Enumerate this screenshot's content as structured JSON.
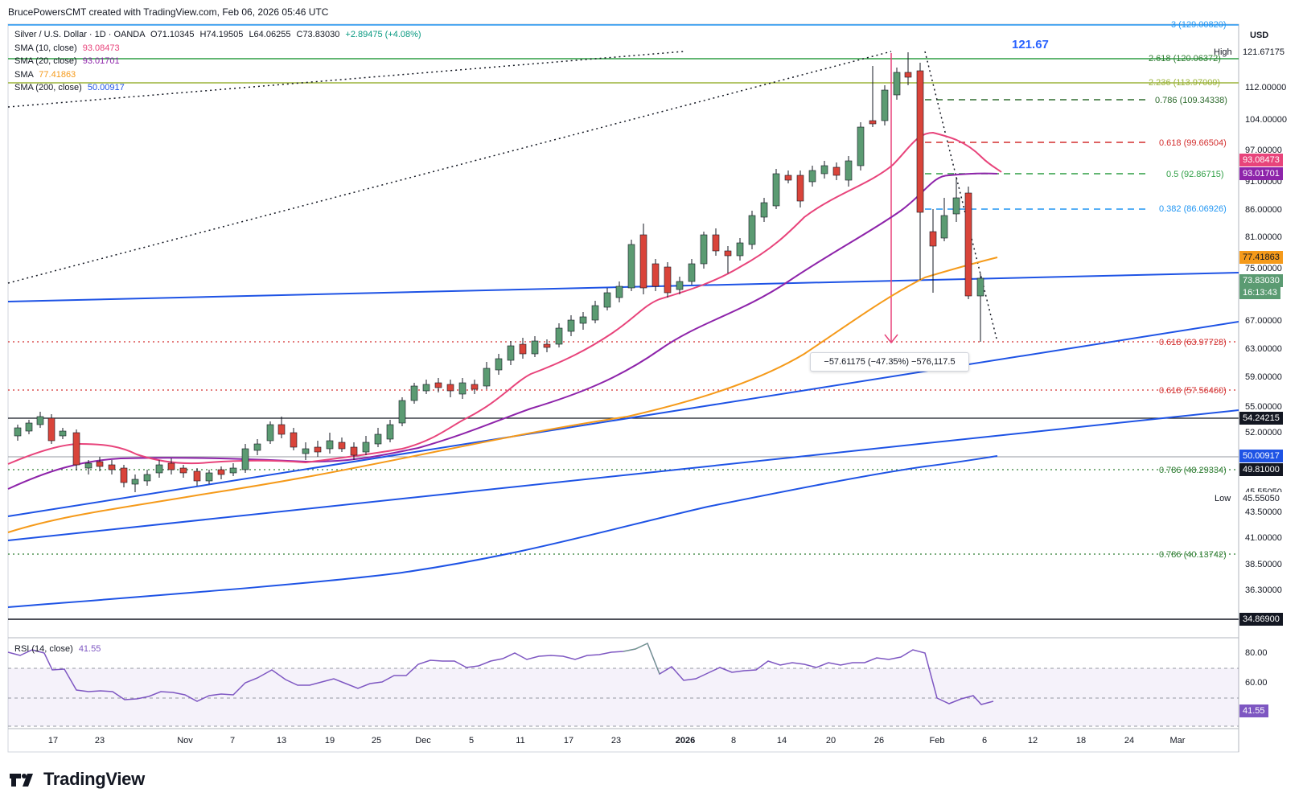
{
  "header": {
    "text": "BrucePowersCMT created with TradingView.com, Feb 06, 2026 05:46 UTC"
  },
  "symbol": {
    "title": "Silver / U.S. Dollar · 1D · OANDA",
    "open": "O71.10345",
    "high": "H74.19505",
    "low": "L64.06255",
    "close": "C73.83030",
    "change": "+2.89475 (+4.08%)"
  },
  "indicators": [
    {
      "label": "SMA (10, close)",
      "value": "93.08473",
      "color": "#e8447b"
    },
    {
      "label": "SMA (20, close)",
      "value": "93.01701",
      "color": "#8e24aa"
    },
    {
      "label": "SMA",
      "value": "77.41863",
      "color": "#f59a1a"
    },
    {
      "label": "SMA (200, close)",
      "value": "50.00917",
      "color": "#1e53e5"
    }
  ],
  "rsi": {
    "label": "RSI (14, close)",
    "value": "41.55",
    "color": "#7e57c2"
  },
  "currency": "USD",
  "high_label": "121.67",
  "measure": "−57.61175 (−47.35%) −576,117.5",
  "brand": "TradingView",
  "price_axis": [
    "121.67175",
    "112.00000",
    "104.00000",
    "97.00000",
    "91.00000",
    "86.00000",
    "81.00000",
    "75.00000",
    "67.00000",
    "63.00000",
    "59.00000",
    "55.00000",
    "52.00000",
    "45.55050",
    "43.50000",
    "41.00000",
    "38.50000",
    "36.30000",
    "34.40000"
  ],
  "price_tags": {
    "high_word": "High",
    "high_value": "121.67175",
    "sma10": "93.08473",
    "sma20": "93.01701",
    "sma_orange": "77.41863",
    "last_price": "73.83030",
    "countdown": "16:13:43",
    "level_54": "54.24215",
    "sma200": "50.00917",
    "level_4981": "49.81000",
    "low_word": "Low",
    "low_value": "45.55050",
    "level_3486": "34.86900",
    "rsi_value": "41.55"
  },
  "rsi_axis": [
    "80.00",
    "60.00"
  ],
  "fib_labels": [
    {
      "text": "3 (129.00820)",
      "color": "#2196f3"
    },
    {
      "text": "2.618 (120.06372)",
      "color": "#2e7d32"
    },
    {
      "text": "2.236 (113.97009)",
      "color": "#9bb33a"
    },
    {
      "text": "0.786 (109.34338)",
      "color": "#2e6b2e"
    },
    {
      "text": "0.618 (99.66504)",
      "color": "#d32f2f"
    },
    {
      "text": "0.5 (92.86715)",
      "color": "#2e9e44"
    },
    {
      "text": "0.382 (86.06926)",
      "color": "#2196f3"
    },
    {
      "text": "0.618 (63.97728)",
      "color": "#d32f2f"
    },
    {
      "text": "0.618 (57.56460)",
      "color": "#d32f2f"
    },
    {
      "text": "0.786 (48.29334)",
      "color": "#2e7d32"
    },
    {
      "text": "0.786 (40.13742)",
      "color": "#2e7d32"
    }
  ],
  "time_axis": [
    "17",
    "23",
    "Nov",
    "7",
    "13",
    "19",
    "25",
    "Dec",
    "5",
    "11",
    "17",
    "23",
    "2026",
    "8",
    "14",
    "20",
    "26",
    "Feb",
    "6",
    "12",
    "18",
    "24",
    "Mar"
  ],
  "colors": {
    "up": "#5b9b72",
    "down": "#d9443a",
    "grid": "#e0e3eb"
  }
}
